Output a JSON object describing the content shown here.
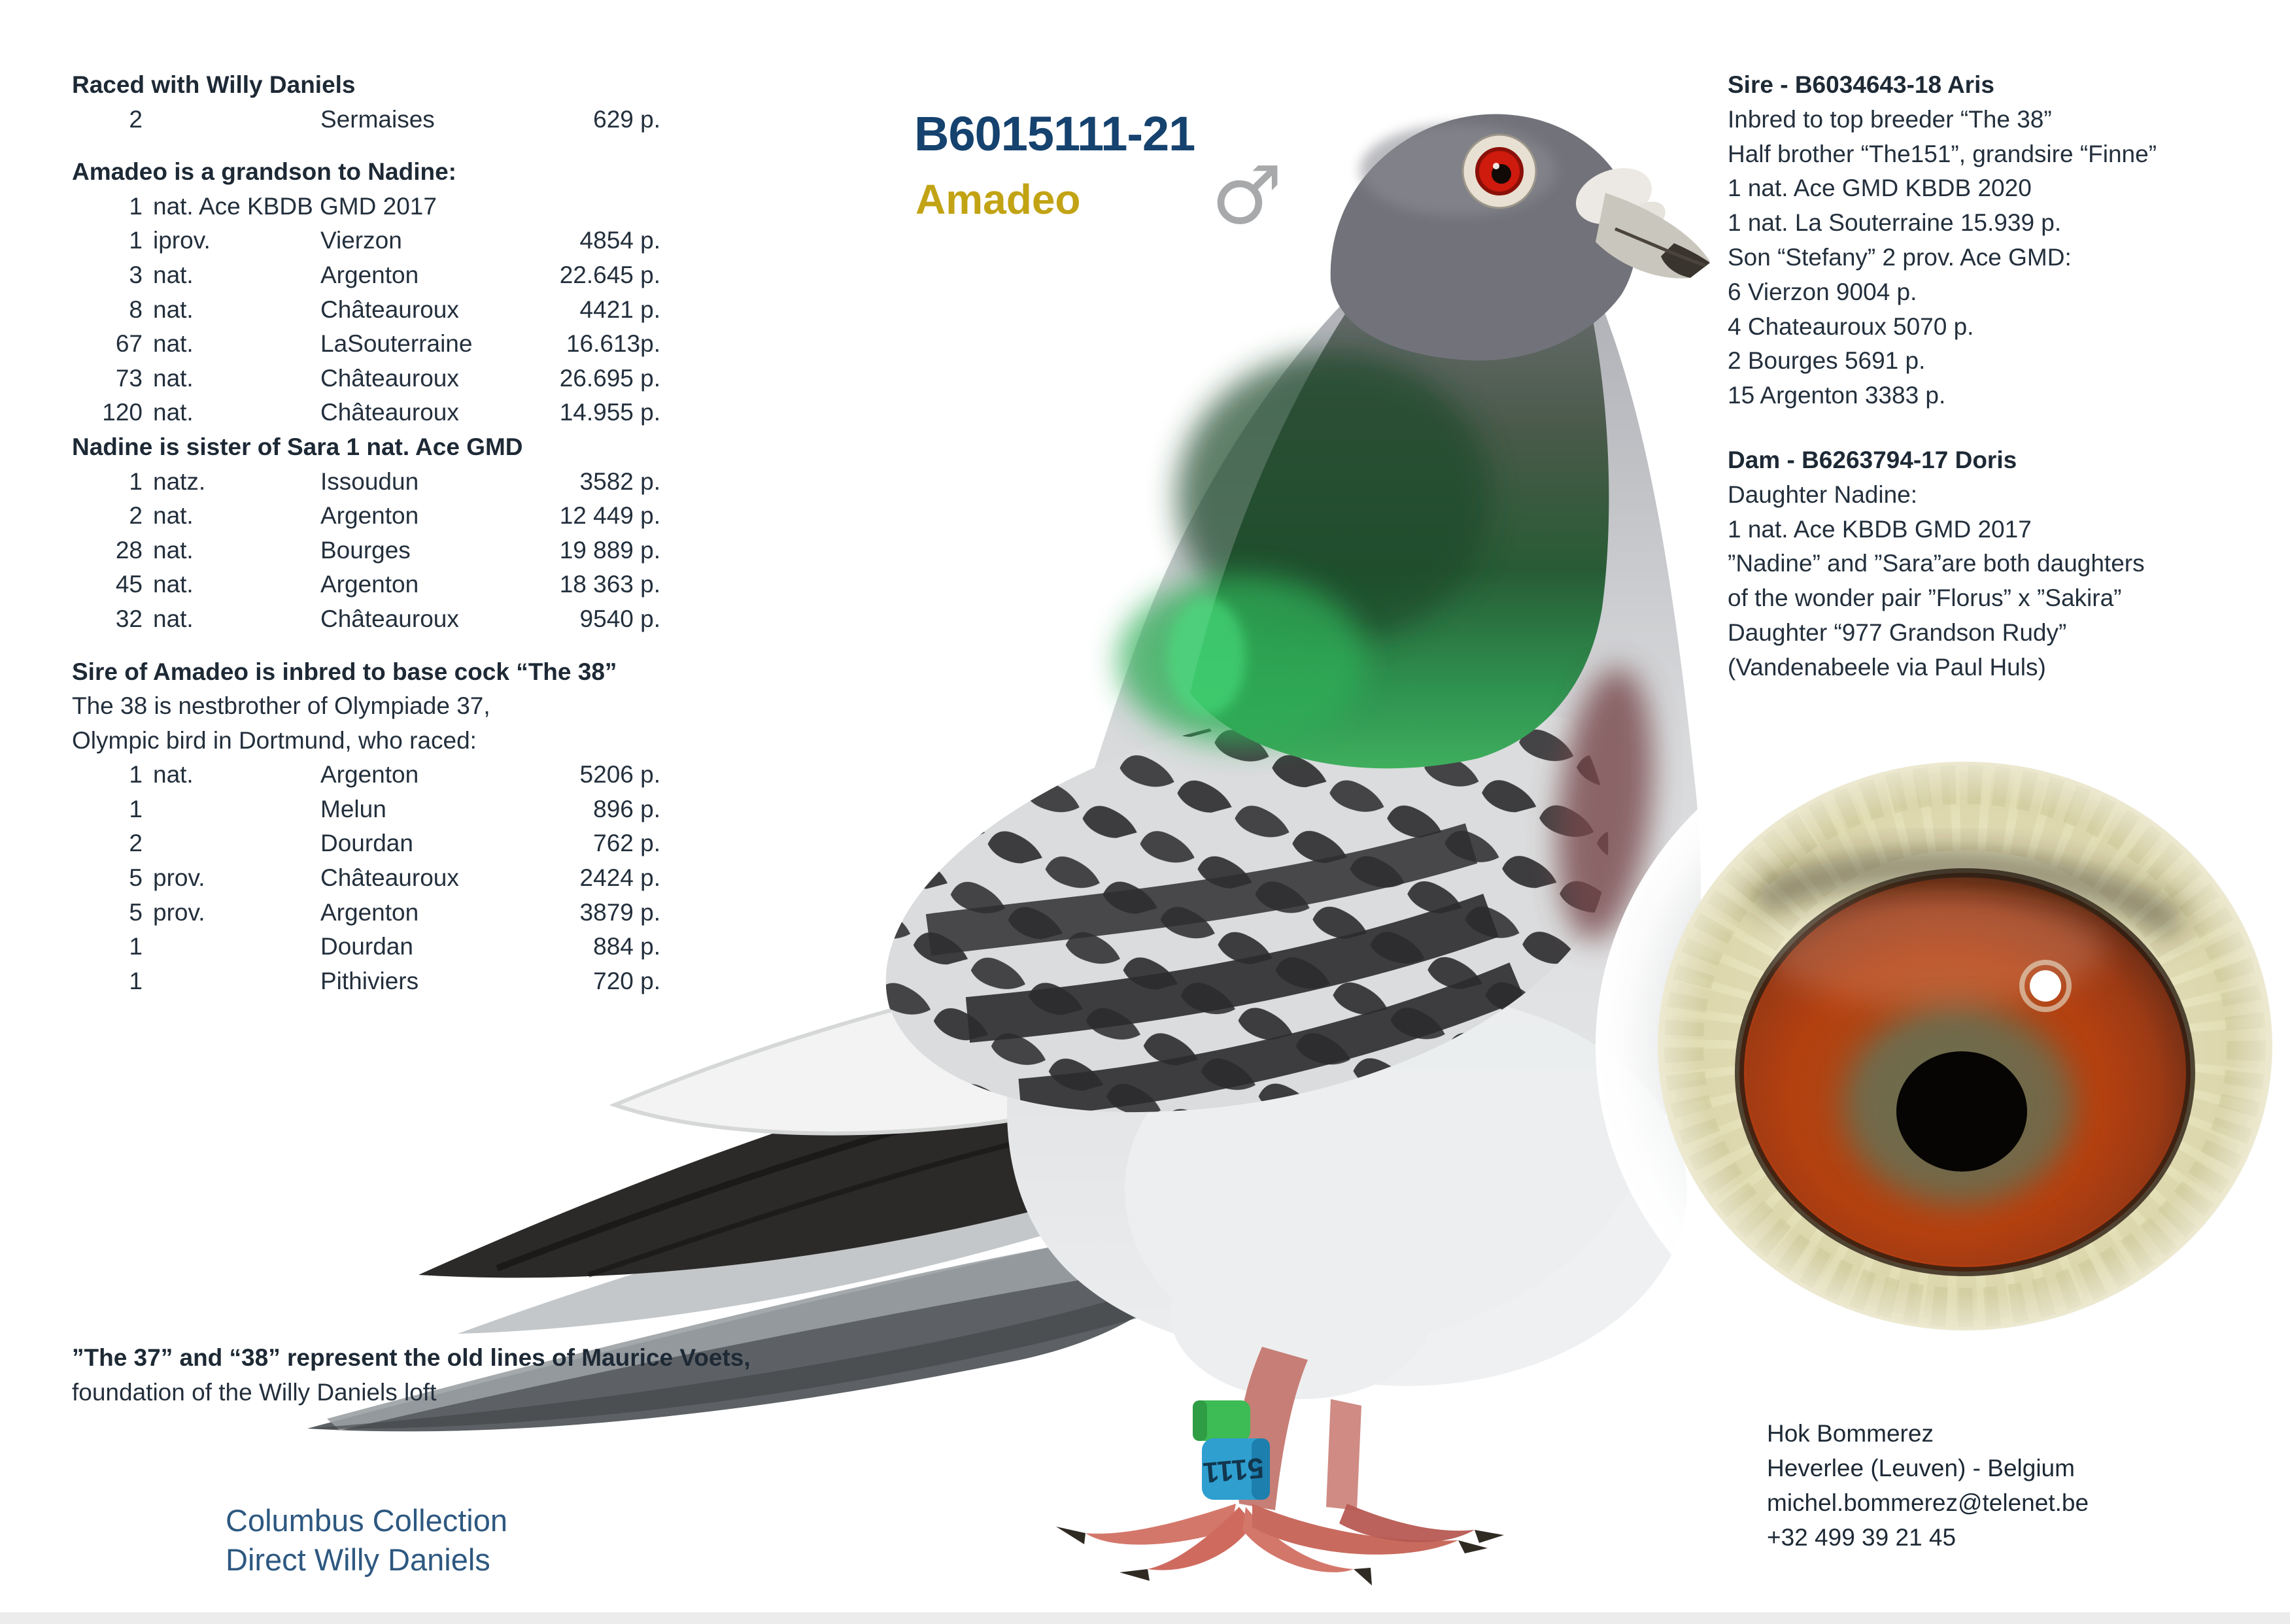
{
  "title": {
    "ring": "B6015111-21",
    "name": "Amadeo",
    "sex_symbol": "♂",
    "ring_color": "#15426e",
    "name_color": "#c2a314"
  },
  "left": {
    "sections": [
      {
        "heading": "Raced with Willy Daniels",
        "rows": [
          {
            "n": "2",
            "c": "",
            "pl": "Sermaises",
            "pt": "629 p."
          }
        ]
      },
      {
        "heading": "Amadeo is a grandson to Nadine:",
        "rows": [
          {
            "n": "1",
            "c": "nat. Ace KBDB GMD 2017",
            "pl": "",
            "pt": ""
          },
          {
            "n": "1",
            "c": "iprov.",
            "pl": "Vierzon",
            "pt": "4854 p."
          },
          {
            "n": "3",
            "c": "nat.",
            "pl": "Argenton",
            "pt": "22.645 p."
          },
          {
            "n": "8",
            "c": "nat.",
            "pl": "Châteauroux",
            "pt": "4421 p."
          },
          {
            "n": "67",
            "c": "nat.",
            "pl": "LaSouterraine",
            "pt": "16.613p."
          },
          {
            "n": "73",
            "c": "nat.",
            "pl": "Châteauroux",
            "pt": "26.695 p."
          },
          {
            "n": "120",
            "c": "nat.",
            "pl": "Châteauroux",
            "pt": "14.955 p."
          }
        ]
      },
      {
        "heading": "Nadine is sister of Sara 1 nat. Ace GMD",
        "rows": [
          {
            "n": "1",
            "c": "natz.",
            "pl": "Issoudun",
            "pt": "3582 p."
          },
          {
            "n": "2",
            "c": "nat.",
            "pl": "Argenton",
            "pt": "12 449 p."
          },
          {
            "n": "28",
            "c": "nat.",
            "pl": "Bourges",
            "pt": "19 889 p."
          },
          {
            "n": "45",
            "c": "nat.",
            "pl": "Argenton",
            "pt": "18 363 p."
          },
          {
            "n": "32",
            "c": "nat.",
            "pl": "Châteauroux",
            "pt": "9540 p."
          }
        ]
      },
      {
        "heading": "Sire of Amadeo is inbred to base cock “The 38”",
        "pre_lines": [
          "The 38 is nestbrother of Olympiade 37,",
          "Olympic bird in Dortmund, who raced:"
        ],
        "rows": [
          {
            "n": "1",
            "c": "nat.",
            "pl": "Argenton",
            "pt": "5206 p."
          },
          {
            "n": "1",
            "c": "",
            "pl": "Melun",
            "pt": "896 p."
          },
          {
            "n": "2",
            "c": "",
            "pl": "Dourdan",
            "pt": "762 p."
          },
          {
            "n": "5",
            "c": "prov.",
            "pl": "Châteauroux",
            "pt": "2424 p."
          },
          {
            "n": "5",
            "c": "prov.",
            "pl": "Argenton",
            "pt": "3879 p."
          },
          {
            "n": "1",
            "c": "",
            "pl": "Dourdan",
            "pt": "884 p."
          },
          {
            "n": "1",
            "c": "",
            "pl": "Pithiviers",
            "pt": "720 p."
          }
        ]
      }
    ],
    "note_bold": "”The 37” and “38” represent the old lines of Maurice Voets,",
    "note_regular": "foundation of the Willy Daniels loft",
    "collection_lines": [
      "Columbus Collection",
      "Direct Willy Daniels"
    ],
    "collection_color": "#2d5880"
  },
  "right": {
    "sire": {
      "heading": "Sire - B6034643-18 Aris",
      "lines": [
        "Inbred to top breeder “The 38”",
        "Half brother “The151”, grandsire “Finne”",
        "1 nat. Ace GMD KBDB 2020",
        "1 nat. La Souterraine 15.939 p.",
        "Son “Stefany” 2 prov. Ace GMD:",
        "6 Vierzon 9004 p.",
        "4 Chateauroux 5070 p.",
        "2 Bourges 5691 p.",
        "15 Argenton 3383 p."
      ]
    },
    "dam": {
      "heading": "Dam - B6263794-17 Doris",
      "lines": [
        "Daughter Nadine:",
        "1 nat. Ace KBDB GMD 2017",
        "”Nadine” and ”Sara”are both daughters",
        "of the wonder pair ”Florus” x ”Sakira”",
        "Daughter “977 Grandson Rudy”",
        "(Vandenabeele via Paul Huls)"
      ]
    },
    "contact": {
      "lines": [
        "Hok Bommerez",
        "Heverlee (Leuven) - Belgium",
        "michel.bommerez@telenet.be",
        "+32 499 39 21 45"
      ]
    }
  },
  "pigeon": {
    "leg_ring_digits": "5111",
    "leg_ring_blue": "#2f9fd0",
    "leg_band_green": "#3dbb55",
    "neck_green": "#2e9350",
    "body_gray": "#d7d9db"
  },
  "eye_photo": {
    "iris_color": "#c2410c",
    "cere_color": "#e9e5c2",
    "pupil_color": "#070503"
  }
}
